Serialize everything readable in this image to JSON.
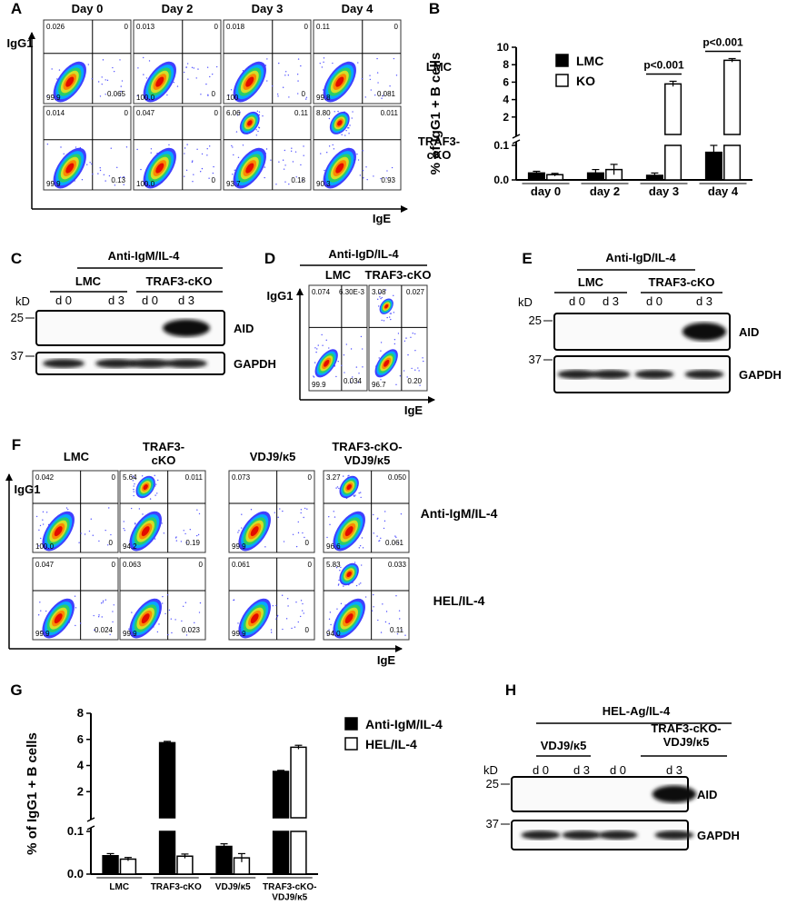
{
  "panel_letters": [
    "A",
    "B",
    "C",
    "D",
    "E",
    "F",
    "G",
    "H"
  ],
  "panel_a": {
    "columns": [
      "Day 0",
      "Day 2",
      "Day 3",
      "Day 4"
    ],
    "rows": [
      {
        "label": "LMC",
        "plots": [
          [
            "0.026",
            "0",
            "99.9",
            "0.065"
          ],
          [
            "0.013",
            "0",
            "100.0",
            "0"
          ],
          [
            "0.018",
            "0",
            "100",
            "0"
          ],
          [
            "0.11",
            "0",
            "99.8",
            "0.081"
          ]
        ]
      },
      {
        "label": "TRAF3-cKO",
        "plots": [
          [
            "0.014",
            "0",
            "99.9",
            "0.13"
          ],
          [
            "0.047",
            "0",
            "100.0",
            "0"
          ],
          [
            "6.06",
            "0.11",
            "93.7",
            "0.18"
          ],
          [
            "8.80",
            "0.011",
            "90.3",
            "0.93"
          ]
        ]
      }
    ],
    "y_label": "IgG1",
    "x_label": "IgE"
  },
  "chart_data": [
    {
      "type": "bar",
      "y_label": "% of IgG1 + B cells",
      "categories": [
        "day 0",
        "day 2",
        "day 3",
        "day 4"
      ],
      "series": [
        {
          "name": "LMC",
          "color": "#000000",
          "values": [
            0.02,
            0.02,
            0.013,
            0.08
          ],
          "errors": [
            0.005,
            0.01,
            0.007,
            0.02
          ]
        },
        {
          "name": "KO",
          "color": "#ffffff",
          "values": [
            0.015,
            0.03,
            5.8,
            8.5
          ],
          "errors": [
            0.004,
            0.015,
            0.3,
            0.2
          ]
        }
      ],
      "ylim": [
        0,
        10
      ],
      "ybreak": 0.1,
      "yticks": [
        {
          "value": 0,
          "label": "0.0"
        },
        0.1,
        2,
        4,
        6,
        8,
        10
      ],
      "annotations": [
        "p<0.001",
        "p<0.001"
      ],
      "legend": "upper-left"
    },
    {
      "type": "bar",
      "y_label": "% of IgG1 + B cells",
      "categories": [
        "LMC",
        "TRAF3-cKO",
        "VDJ9/κ5",
        "TRAF3-cKO-VDJ9/κ5"
      ],
      "series": [
        {
          "name": "Anti-IgM/IL-4",
          "color": "#000000",
          "values": [
            0.043,
            5.75,
            0.065,
            3.55
          ],
          "errors": [
            0.005,
            0.1,
            0.006,
            0.08
          ]
        },
        {
          "name": "HEL/IL-4",
          "color": "#ffffff",
          "values": [
            0.035,
            0.042,
            0.038,
            5.4
          ],
          "errors": [
            0.004,
            0.005,
            0.01,
            0.15
          ]
        }
      ],
      "ylim": [
        0,
        8
      ],
      "ybreak": 0.1,
      "yticks": [
        {
          "value": 0,
          "label": "0.0"
        },
        0.1,
        2,
        4,
        6,
        8
      ],
      "legend": "right"
    }
  ],
  "panel_c": {
    "header": "Anti-IgM/IL-4",
    "groups": [
      "LMC",
      "TRAF3-cKO"
    ],
    "lanes": [
      "d 0",
      "d 3",
      "d 0",
      "d 3"
    ],
    "unit": "kD",
    "markers": [
      25,
      37
    ],
    "bands": [
      "AID",
      "GAPDH"
    ]
  },
  "panel_d": {
    "header": "Anti-IgD/IL-4",
    "columns": [
      "LMC",
      "TRAF3-cKO"
    ],
    "plots": [
      [
        "0.074",
        "6.30E-3",
        "99.9",
        "0.034"
      ],
      [
        "3.08",
        "0.027",
        "96.7",
        "0.20"
      ]
    ],
    "y_label": "IgG1",
    "x_label": "IgE"
  },
  "panel_e": {
    "header": "Anti-IgD/IL-4",
    "groups": [
      "LMC",
      "TRAF3-cKO"
    ],
    "lanes": [
      "d 0",
      "d 3",
      "d 0",
      "d 3"
    ],
    "unit": "kD",
    "markers": [
      25,
      37
    ],
    "bands": [
      "AID",
      "GAPDH"
    ]
  },
  "panel_f": {
    "columns": [
      "LMC",
      "TRAF3-cKO",
      "VDJ9/κ5",
      "TRAF3-cKO-VDJ9/κ5"
    ],
    "rows": [
      {
        "label": "Anti-IgM/IL-4",
        "plots": [
          [
            "0.042",
            "0",
            "100.0",
            "0"
          ],
          [
            "5.64",
            "0.011",
            "94.2",
            "0.19"
          ],
          [
            "0.073",
            "0",
            "99.9",
            "0"
          ],
          [
            "3.27",
            "0.050",
            "96.6",
            "0.061"
          ]
        ]
      },
      {
        "label": "HEL/IL-4",
        "plots": [
          [
            "0.047",
            "0",
            "99.9",
            "0.024"
          ],
          [
            "0.063",
            "0",
            "99.9",
            "0.023"
          ],
          [
            "0.061",
            "0",
            "99.9",
            "0"
          ],
          [
            "5.83",
            "0.033",
            "94.0",
            "0.11"
          ]
        ]
      }
    ],
    "y_label": "IgG1",
    "x_label": "IgE"
  },
  "panel_h": {
    "header": "HEL-Ag/IL-4",
    "groups": [
      "VDJ9/κ5",
      "TRAF3-cKO-VDJ9/κ5"
    ],
    "lanes": [
      "d 0",
      "d 3",
      "d 0",
      "d 3"
    ],
    "unit": "kD",
    "markers": [
      25,
      37
    ],
    "bands": [
      "AID",
      "GAPDH"
    ]
  }
}
